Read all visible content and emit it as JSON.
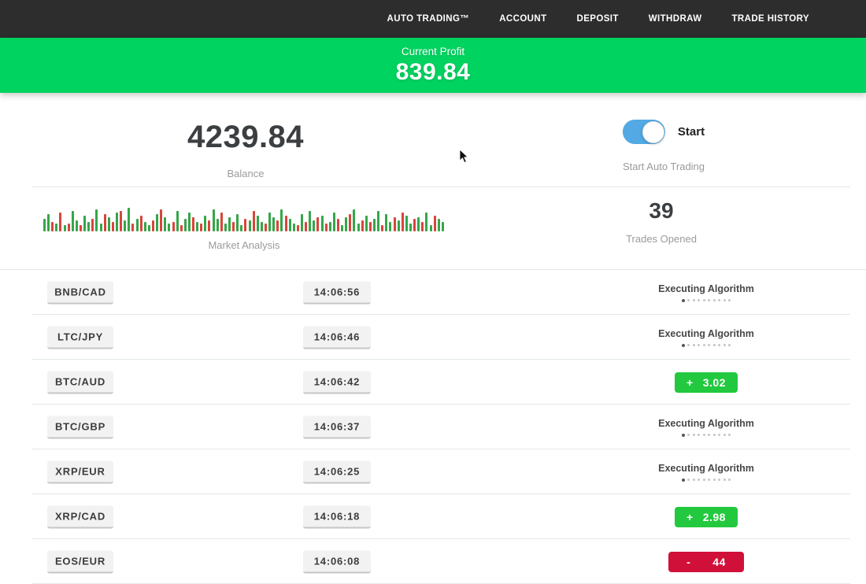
{
  "colors": {
    "navbar_dark": "#2d2d2d",
    "banner_green": "#00d35f",
    "profit_green": "#22c93e",
    "loss_red": "#d01039",
    "toggle_blue": "#52a9e4",
    "bar_green": "#35a649",
    "bar_red": "#d8453c"
  },
  "navbar": {
    "items": [
      {
        "label": "AUTO TRADING™"
      },
      {
        "label": "ACCOUNT"
      },
      {
        "label": "DEPOSIT"
      },
      {
        "label": "WITHDRAW"
      },
      {
        "label": "TRADE HISTORY"
      }
    ]
  },
  "profit_banner": {
    "label": "Current Profit",
    "value": "839.84"
  },
  "stats": {
    "balance": {
      "value": "4239.84",
      "label": "Balance"
    },
    "auto_trading": {
      "toggle_label": "Start",
      "label": "Start Auto Trading",
      "toggle_on": true
    },
    "market_analysis": {
      "label": "Market Analysis",
      "bars": [
        "g16",
        "g22",
        "r12",
        "g10",
        "r24",
        "g8",
        "r10",
        "g26",
        "g14",
        "r8",
        "g20",
        "g12",
        "r16",
        "g28",
        "g10",
        "r22",
        "g18",
        "r12",
        "g24",
        "r26",
        "g14",
        "g30",
        "r10",
        "g16",
        "r20",
        "g12",
        "g8",
        "r14",
        "g22",
        "r28",
        "g18",
        "g10",
        "r12",
        "g26",
        "r8",
        "g16",
        "g24",
        "r18",
        "g12",
        "r10",
        "g20",
        "r14",
        "g28",
        "g16",
        "r24",
        "g10",
        "g18",
        "r12",
        "g22",
        "g8",
        "r16",
        "g14",
        "r26",
        "g20",
        "g12",
        "r10",
        "g24",
        "g18",
        "r14",
        "g28",
        "r20",
        "g16",
        "g10",
        "r8",
        "g22",
        "r12",
        "g26",
        "g14",
        "r18",
        "g20",
        "r10",
        "g12",
        "g24",
        "r16",
        "g8",
        "g18",
        "r22",
        "g28",
        "g10",
        "r14",
        "g20",
        "r12",
        "g16",
        "g26",
        "r8",
        "g22",
        "g12",
        "r18",
        "g14",
        "r24",
        "g20",
        "g10",
        "r16",
        "g18",
        "r12",
        "g24",
        "g8",
        "r20",
        "g16",
        "g12"
      ]
    },
    "trades_opened": {
      "value": "39",
      "label": "Trades Opened"
    }
  },
  "trades": {
    "executing_label": "Executing Algorithm",
    "rows": [
      {
        "pair": "BNB/CAD",
        "time": "14:06:56",
        "status": "executing"
      },
      {
        "pair": "LTC/JPY",
        "time": "14:06:46",
        "status": "executing"
      },
      {
        "pair": "BTC/AUD",
        "time": "14:06:42",
        "status": "profit",
        "sign": "+",
        "amount": "3.02"
      },
      {
        "pair": "BTC/GBP",
        "time": "14:06:37",
        "status": "executing"
      },
      {
        "pair": "XRP/EUR",
        "time": "14:06:25",
        "status": "executing"
      },
      {
        "pair": "XRP/CAD",
        "time": "14:06:18",
        "status": "profit",
        "sign": "+",
        "amount": "2.98"
      },
      {
        "pair": "EOS/EUR",
        "time": "14:06:08",
        "status": "loss",
        "sign": "-",
        "amount": "44"
      }
    ]
  }
}
